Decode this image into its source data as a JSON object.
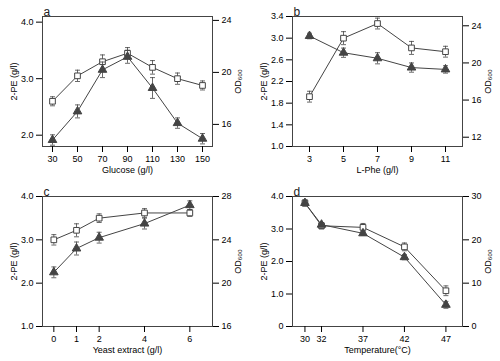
{
  "chart_data": [
    {
      "type": "line",
      "annotations": [
        "a"
      ],
      "x": [
        30,
        50,
        70,
        90,
        110,
        130,
        150
      ],
      "xlabel": "Glucose (g/l)",
      "ylabel": "2-PE (g/l)",
      "y2label": "OD₆₀₀",
      "xlim": [
        22,
        158
      ],
      "xticks": [
        30,
        50,
        70,
        90,
        110,
        130,
        150
      ],
      "ylim": [
        1.8,
        4.1
      ],
      "yticks": [
        {
          "value": 2.0,
          "label": "2.0"
        },
        {
          "value": 3.0,
          "label": "3.0"
        },
        {
          "value": 4.0,
          "label": "4.0"
        }
      ],
      "y2lim": [
        14.3,
        24.3
      ],
      "y2ticks": [
        16,
        20,
        24
      ],
      "series": [
        {
          "values": [
            2.6,
            3.05,
            3.3,
            3.45,
            3.2,
            3.0,
            2.88
          ],
          "errors": [
            0.08,
            0.1,
            0.12,
            0.1,
            0.12,
            0.1,
            0.08
          ],
          "color": "#444444",
          "marker": "square-open",
          "axis": "y"
        },
        {
          "values": [
            14.8,
            17.0,
            20.2,
            21.2,
            18.8,
            16.1,
            14.9
          ],
          "errors": [
            0.4,
            0.5,
            0.6,
            0.5,
            0.8,
            0.4,
            0.4
          ],
          "color": "#444444",
          "marker": "triangle",
          "axis": "y2"
        }
      ]
    },
    {
      "type": "line",
      "annotations": [
        "b"
      ],
      "x": [
        3,
        5,
        7,
        9,
        11
      ],
      "xlabel": "L-Phe (g/l)",
      "ylabel": "2-PE (g/l)",
      "y2label": "OD₆₀₀",
      "xlim": [
        2,
        12
      ],
      "xticks": [
        3,
        5,
        7,
        9,
        11
      ],
      "ylim": [
        1.0,
        3.4
      ],
      "yticks": [
        {
          "value": 1.0,
          "label": "1.0"
        },
        1.4,
        1.8,
        2.2,
        2.6,
        {
          "value": 3.0,
          "label": "3.0"
        },
        3.4
      ],
      "y2lim": [
        11,
        25
      ],
      "y2ticks": [
        12,
        16,
        20,
        24
      ],
      "series": [
        {
          "values": [
            1.92,
            3.0,
            3.27,
            2.82,
            2.75
          ],
          "errors": [
            0.1,
            0.12,
            0.1,
            0.12,
            0.1
          ],
          "color": "#444444",
          "marker": "square-open",
          "axis": "y"
        },
        {
          "values": [
            22.9,
            21.1,
            20.5,
            19.5,
            19.3
          ],
          "errors": [
            0.3,
            0.5,
            0.6,
            0.5,
            0.4
          ],
          "color": "#444444",
          "marker": "triangle",
          "axis": "y2"
        }
      ]
    },
    {
      "type": "line",
      "annotations": [
        "c"
      ],
      "x": [
        0,
        1,
        2,
        4,
        6
      ],
      "xlabel": "Yeast extract (g/l)",
      "ylabel": "2-PE (g/l)",
      "y2label": "OD₆₀₀",
      "xlim": [
        -0.5,
        7
      ],
      "xticks": [
        0,
        1,
        2,
        4,
        6
      ],
      "ylim": [
        1.0,
        4.0
      ],
      "yticks": [
        {
          "value": 1.0,
          "label": "1.0"
        },
        {
          "value": 2.0,
          "label": "2.0"
        },
        {
          "value": 3.0,
          "label": "3.0"
        },
        {
          "value": 4.0,
          "label": "4.0"
        }
      ],
      "y2lim": [
        16,
        28
      ],
      "y2ticks": [
        16,
        20,
        24,
        28
      ],
      "series": [
        {
          "values": [
            3.0,
            3.22,
            3.5,
            3.62,
            3.62
          ],
          "errors": [
            0.12,
            0.15,
            0.1,
            0.1,
            0.08
          ],
          "color": "#444444",
          "marker": "square-open",
          "axis": "y"
        },
        {
          "values": [
            21.0,
            23.2,
            24.2,
            25.5,
            27.2
          ],
          "errors": [
            0.5,
            0.6,
            0.5,
            0.5,
            0.4
          ],
          "color": "#444444",
          "marker": "triangle",
          "axis": "y2"
        }
      ]
    },
    {
      "type": "line",
      "annotations": [
        "d"
      ],
      "x": [
        30,
        32,
        37,
        42,
        47
      ],
      "xlabel": "Temperature(°C)",
      "ylabel": "2-PE (g/l)",
      "y2label": "OD₆₀₀",
      "xlim": [
        28.5,
        49
      ],
      "xticks": [
        30,
        32,
        37,
        42,
        47
      ],
      "ylim": [
        0,
        4.0
      ],
      "yticks": [
        0,
        {
          "value": 1.0,
          "label": "1.0"
        },
        {
          "value": 2.0,
          "label": "2.0"
        },
        {
          "value": 3.0,
          "label": "3.0"
        },
        {
          "value": 4.0,
          "label": "4.0"
        }
      ],
      "y2lim": [
        0,
        30
      ],
      "y2ticks": [
        0,
        10,
        20,
        30
      ],
      "series": [
        {
          "values": [
            3.8,
            3.1,
            3.05,
            2.45,
            1.1
          ],
          "errors": [
            0.1,
            0.1,
            0.12,
            0.12,
            0.15
          ],
          "color": "#444444",
          "marker": "square-open",
          "axis": "y"
        },
        {
          "values": [
            28.5,
            23.5,
            21.5,
            16.0,
            5.0
          ],
          "errors": [
            0.5,
            0.5,
            0.5,
            0.6,
            0.8
          ],
          "color": "#444444",
          "marker": "triangle",
          "axis": "y2"
        }
      ]
    }
  ]
}
